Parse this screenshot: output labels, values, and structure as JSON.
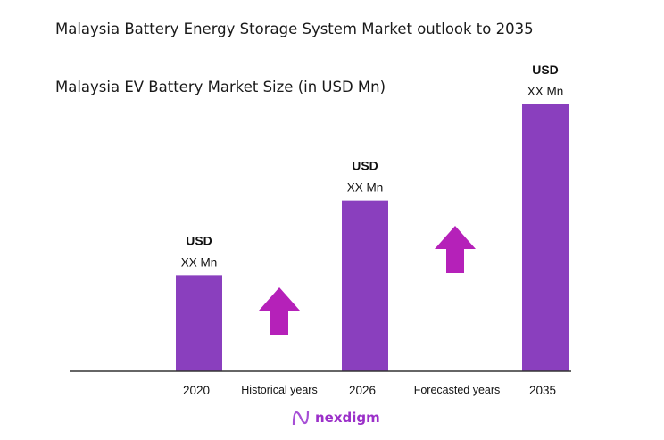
{
  "chart_data": {
    "type": "bar",
    "title": "Malaysia Battery Energy Storage System Market outlook to 2035",
    "subtitle": "Malaysia EV Battery Market Size (in USD Mn)",
    "categories": [
      "2020",
      "2026",
      "2035"
    ],
    "values": [
      36,
      64,
      100
    ],
    "value_note_relative": true,
    "data_labels": [
      {
        "line1": "USD",
        "line2": "XX Mn"
      },
      {
        "line1": "USD",
        "line2": "XX Mn"
      },
      {
        "line1": "USD",
        "line2": "XX Mn"
      }
    ],
    "period_labels": [
      "Historical years",
      "Forecasted years"
    ],
    "grid": false,
    "bar_color": "#8A3FBE",
    "arrow_color": "#B521B9"
  },
  "brand": {
    "name": "nexdigm",
    "color": "#9B2FC9"
  }
}
